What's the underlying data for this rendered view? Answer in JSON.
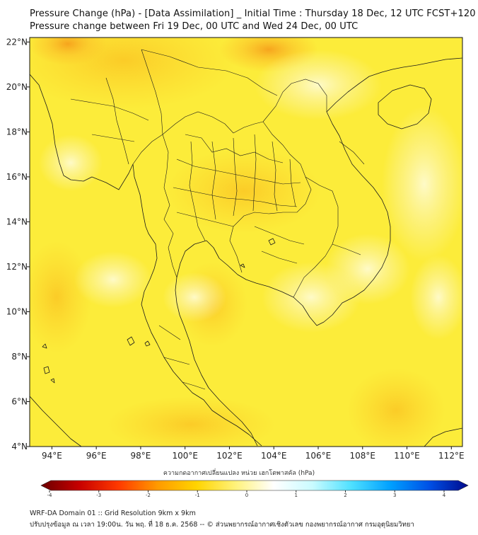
{
  "header": {
    "title_line1": "Pressure Change (hPa) - [Data Assimilation] _ Initial Time : Thursday 18 Dec, 12 UTC FCST+120",
    "title_line2": "Pressure change between Fri 19 Dec, 00 UTC and Wed 24 Dec, 00 UTC"
  },
  "map": {
    "lon_ticks": [
      "94°E",
      "96°E",
      "98°E",
      "100°E",
      "102°E",
      "104°E",
      "106°E",
      "108°E",
      "110°E",
      "112°E"
    ],
    "lat_ticks": [
      "22°N",
      "20°N",
      "18°N",
      "16°N",
      "14°N",
      "12°N",
      "10°N",
      "8°N",
      "6°N",
      "4°N"
    ],
    "extent": {
      "lon_min": 93,
      "lon_max": 112.5,
      "lat_min": 4,
      "lat_max": 22.2
    },
    "colors": {
      "field_base": "#fcec3a",
      "field_light": "#fdf7a2",
      "field_strong": "#fbc21a",
      "coastline": "#1a1a1a"
    }
  },
  "colorbar": {
    "label": "ความกดอากาศเปลี่ยนแปลง หน่วย เฮกโตพาสคัล (hPa)",
    "range": [
      -4,
      4
    ],
    "tick_labels": [
      "-4",
      "-3",
      "-2",
      "-1",
      "0",
      "1",
      "2",
      "3",
      "4"
    ],
    "stops": [
      "#6b0000",
      "#c80000",
      "#ff3a00",
      "#ff9a00",
      "#ffd400",
      "#fff27a",
      "#ffffff",
      "#c9fbff",
      "#4ee0ff",
      "#00a0ff",
      "#0050e6",
      "#000a8c"
    ]
  },
  "footer": {
    "line1": "WRF-DA Domain 01 :: Grid Resolution 9km x 9km",
    "line2": "ปรับปรุงข้อมูล ณ เวลา 19:00น. วัน พฤ. ที่ 18 ธ.ค. 2568 -- © ส่วนพยากรณ์อากาศเชิงตัวเลข กองพยากรณ์อากาศ กรมอุตุนิยมวิทยา"
  }
}
